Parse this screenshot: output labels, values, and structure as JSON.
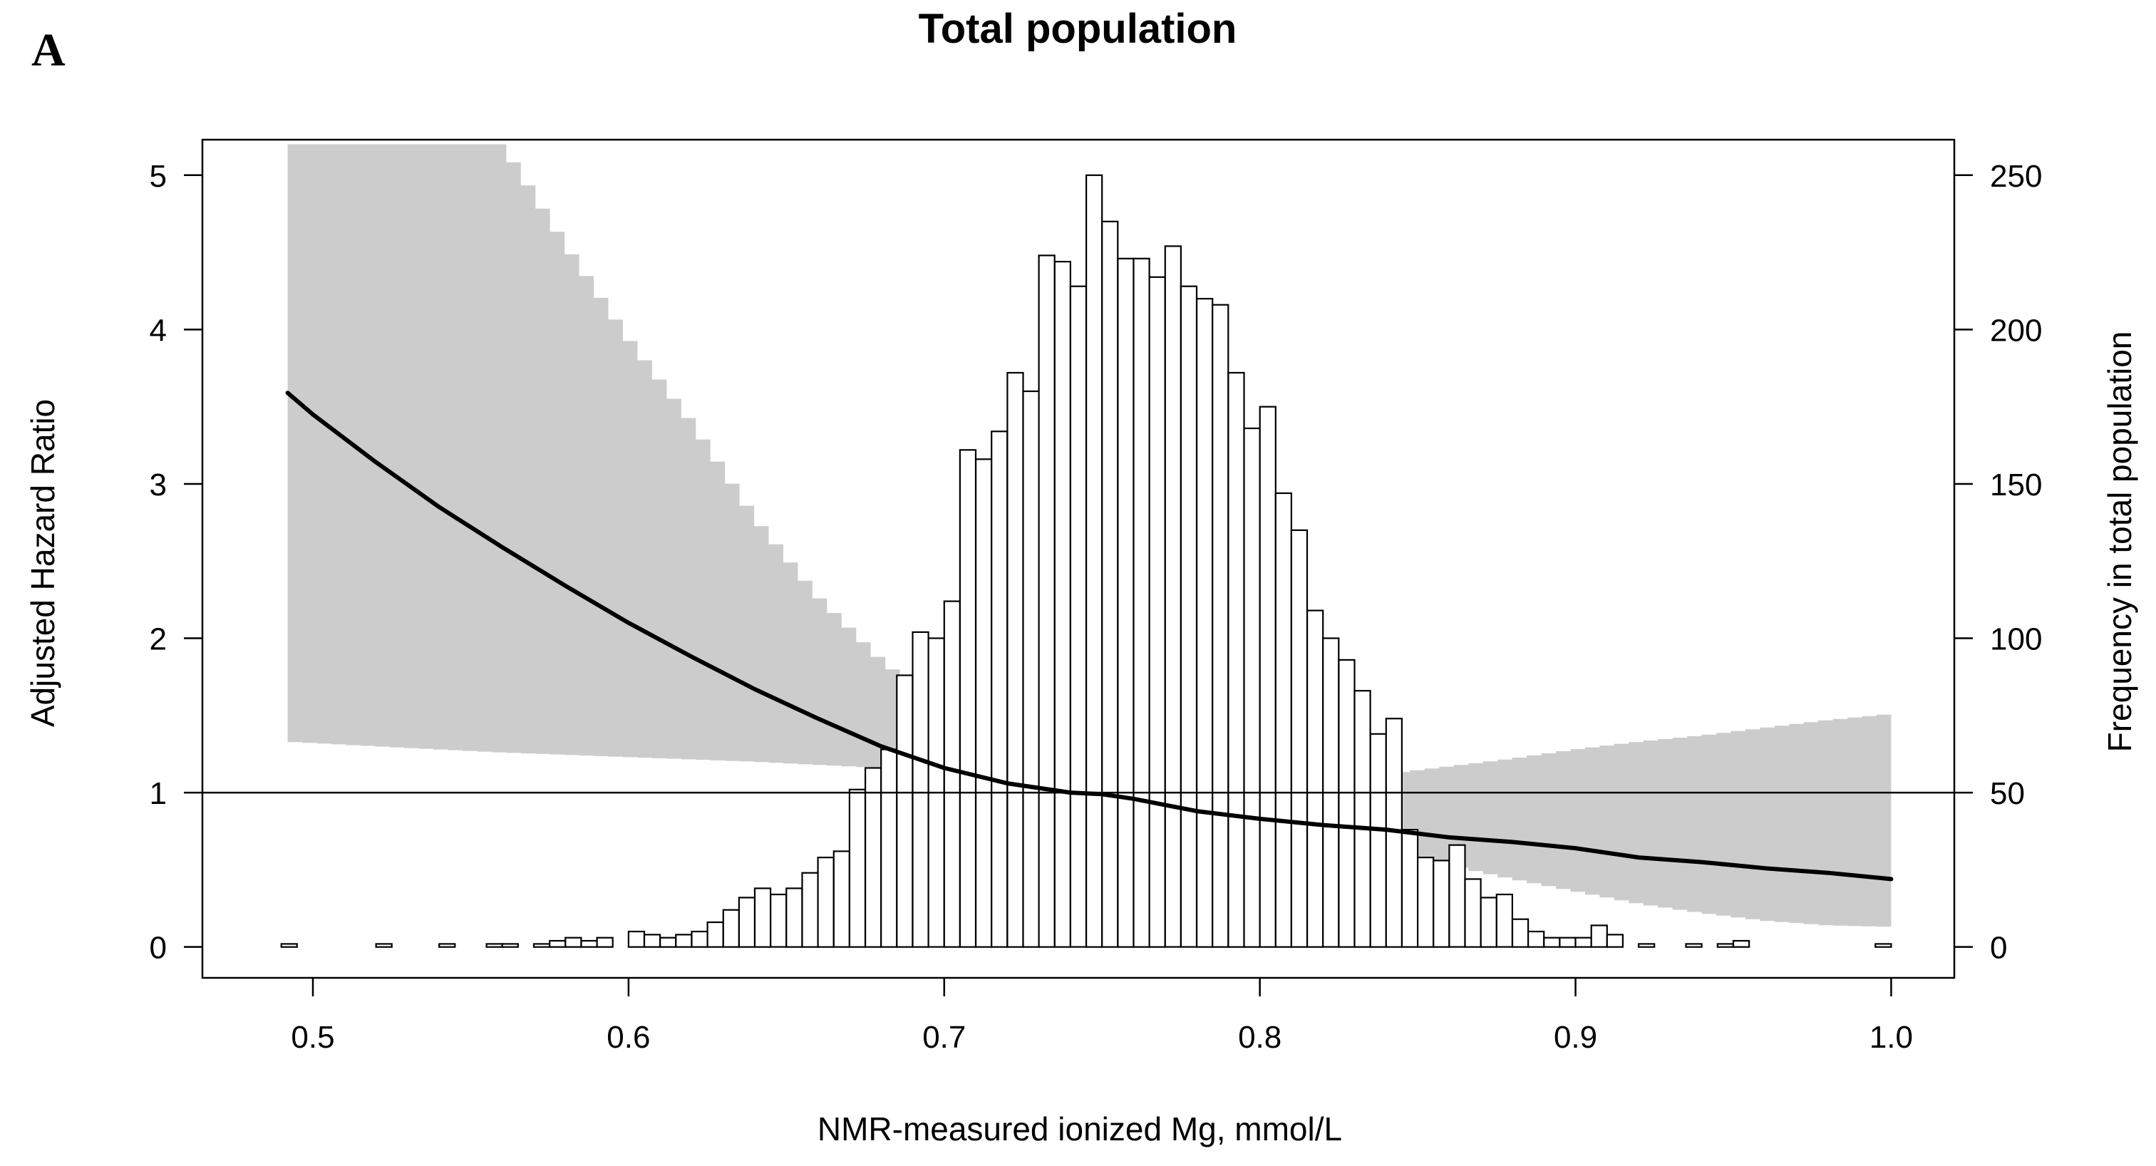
{
  "panel_letter": "A",
  "chart_data": {
    "type": "line",
    "title": "Total population",
    "xlabel": "NMR-measured ionized Mg, mmol/L",
    "ylabel": "Adjusted Hazard Ratio",
    "y2label": "Frequency in total population",
    "xlim": [
      0.465,
      1.02
    ],
    "ylim": [
      -0.2,
      5.23
    ],
    "y2lim": [
      -10,
      261.5
    ],
    "x_ticks": [
      0.5,
      0.6,
      0.7,
      0.8,
      0.9,
      1.0
    ],
    "x_tick_labels": [
      "0.5",
      "0.6",
      "0.7",
      "0.8",
      "0.9",
      "1.0"
    ],
    "y_ticks": [
      0,
      1,
      2,
      3,
      4,
      5
    ],
    "y_tick_labels": [
      "0",
      "1",
      "2",
      "3",
      "4",
      "5"
    ],
    "y2_ticks": [
      0,
      50,
      100,
      150,
      200,
      250
    ],
    "y2_tick_labels": [
      "0",
      "50",
      "100",
      "150",
      "200",
      "250"
    ],
    "reference_line_y": 1,
    "colors": {
      "ci_band": "#cccccc",
      "curve": "#000000",
      "bars": "#ffffff",
      "bar_edge": "#000000"
    },
    "series": [
      {
        "name": "Adjusted Hazard Ratio",
        "x": [
          0.492,
          0.5,
          0.52,
          0.54,
          0.56,
          0.58,
          0.6,
          0.62,
          0.64,
          0.66,
          0.68,
          0.7,
          0.72,
          0.74,
          0.75,
          0.76,
          0.78,
          0.8,
          0.82,
          0.84,
          0.86,
          0.88,
          0.9,
          0.92,
          0.94,
          0.96,
          0.98,
          1.0
        ],
        "y": [
          3.59,
          3.45,
          3.14,
          2.85,
          2.59,
          2.34,
          2.1,
          1.88,
          1.67,
          1.48,
          1.3,
          1.16,
          1.06,
          1.0,
          0.99,
          0.96,
          0.88,
          0.83,
          0.79,
          0.76,
          0.71,
          0.68,
          0.64,
          0.58,
          0.55,
          0.51,
          0.48,
          0.44
        ]
      },
      {
        "name": "95% CI upper",
        "x": [
          0.492,
          0.56,
          0.58,
          0.6,
          0.62,
          0.64,
          0.66,
          0.68,
          0.7,
          0.72,
          0.74,
          0.76,
          0.8,
          0.84,
          0.86,
          0.88,
          0.9,
          0.92,
          0.94,
          0.96,
          0.98,
          1.0
        ],
        "y": [
          5.2,
          5.2,
          4.55,
          3.94,
          3.4,
          2.78,
          2.27,
          1.86,
          1.52,
          1.27,
          1.08,
          1.01,
          1.05,
          1.12,
          1.17,
          1.22,
          1.28,
          1.33,
          1.37,
          1.42,
          1.47,
          1.51
        ]
      },
      {
        "name": "95% CI lower",
        "x": [
          0.492,
          0.52,
          0.56,
          0.6,
          0.64,
          0.68,
          0.72,
          0.74,
          0.76,
          0.78,
          0.8,
          0.82,
          0.84,
          0.86,
          0.88,
          0.9,
          0.92,
          0.94,
          0.96,
          0.98,
          1.0
        ],
        "y": [
          1.33,
          1.3,
          1.26,
          1.23,
          1.2,
          1.16,
          1.06,
          1.02,
          0.97,
          0.9,
          0.83,
          0.73,
          0.63,
          0.53,
          0.44,
          0.36,
          0.28,
          0.22,
          0.17,
          0.14,
          0.13
        ]
      }
    ],
    "histogram": {
      "bin_width": 0.005,
      "bin_starts": [
        0.49,
        0.52,
        0.54,
        0.555,
        0.56,
        0.57,
        0.575,
        0.58,
        0.585,
        0.59,
        0.6,
        0.605,
        0.61,
        0.615,
        0.62,
        0.625,
        0.63,
        0.635,
        0.64,
        0.645,
        0.65,
        0.655,
        0.66,
        0.665,
        0.67,
        0.675,
        0.68,
        0.685,
        0.69,
        0.695,
        0.7,
        0.705,
        0.71,
        0.715,
        0.72,
        0.725,
        0.73,
        0.735,
        0.74,
        0.745,
        0.75,
        0.755,
        0.76,
        0.765,
        0.77,
        0.775,
        0.78,
        0.785,
        0.79,
        0.795,
        0.8,
        0.805,
        0.81,
        0.815,
        0.82,
        0.825,
        0.83,
        0.835,
        0.84,
        0.845,
        0.85,
        0.855,
        0.86,
        0.865,
        0.87,
        0.875,
        0.88,
        0.885,
        0.89,
        0.895,
        0.9,
        0.905,
        0.91,
        0.92,
        0.935,
        0.945,
        0.95,
        0.995
      ],
      "counts": [
        1,
        1,
        1,
        1,
        1,
        1,
        2,
        3,
        2,
        3,
        5,
        4,
        3,
        4,
        5,
        8,
        12,
        16,
        19,
        17,
        19,
        24,
        29,
        31,
        51,
        58,
        64,
        88,
        102,
        100,
        112,
        161,
        158,
        167,
        186,
        180,
        224,
        222,
        214,
        250,
        235,
        223,
        223,
        217,
        227,
        214,
        210,
        208,
        186,
        168,
        175,
        147,
        135,
        109,
        100,
        93,
        83,
        69,
        74,
        38,
        29,
        28,
        33,
        22,
        16,
        17,
        9,
        5,
        3,
        3,
        3,
        7,
        4,
        1,
        1,
        1,
        2,
        1
      ]
    }
  }
}
